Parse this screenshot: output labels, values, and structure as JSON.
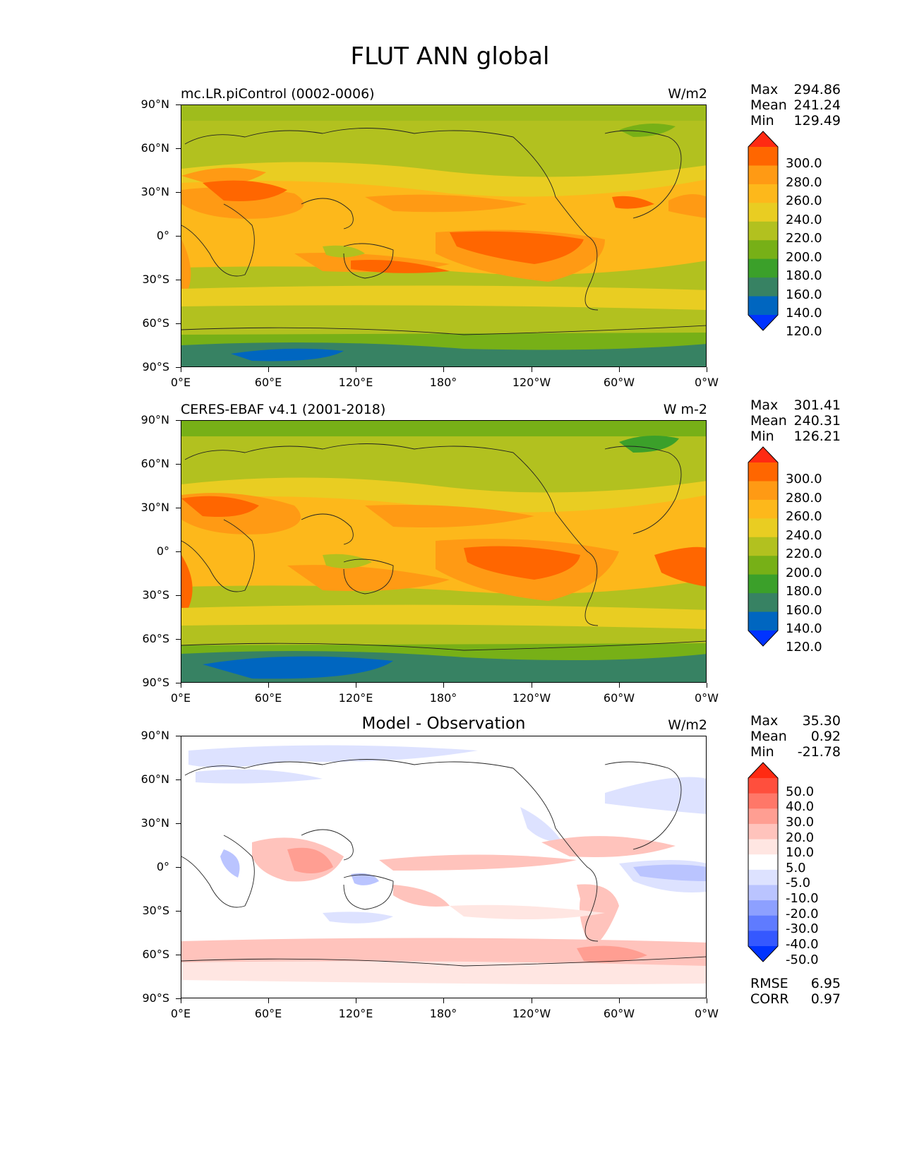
{
  "title": "FLUT ANN global",
  "axes": {
    "lat_labels": [
      "90°N",
      "60°N",
      "30°N",
      "0°",
      "30°S",
      "60°S",
      "90°S"
    ],
    "lon_labels": [
      "0°E",
      "60°E",
      "120°E",
      "180°",
      "120°W",
      "60°W",
      "0°W"
    ]
  },
  "panels": [
    {
      "name": "mc.LR.piControl (0002-0006)",
      "title": "",
      "units": "W/m2",
      "stats": {
        "max_label": "Max",
        "max": "294.86",
        "mean_label": "Mean",
        "mean": "241.24",
        "min_label": "Min",
        "min": "129.49"
      },
      "colorbar": {
        "labels": [
          "300.0",
          "280.0",
          "260.0",
          "240.0",
          "220.0",
          "200.0",
          "180.0",
          "160.0",
          "140.0",
          "120.0"
        ],
        "colors": [
          "#ff2a12",
          "#ff6600",
          "#ff9a14",
          "#fdb81b",
          "#e9cd22",
          "#b2c11f",
          "#77b017",
          "#3ba02a",
          "#378263",
          "#0066c0",
          "#0033ff"
        ]
      }
    },
    {
      "name": "CERES-EBAF v4.1 (2001-2018)",
      "title": "",
      "units": "W m-2",
      "stats": {
        "max_label": "Max",
        "max": "301.41",
        "mean_label": "Mean",
        "mean": "240.31",
        "min_label": "Min",
        "min": "126.21"
      },
      "colorbar": {
        "labels": [
          "300.0",
          "280.0",
          "260.0",
          "240.0",
          "220.0",
          "200.0",
          "180.0",
          "160.0",
          "140.0",
          "120.0"
        ],
        "colors": [
          "#ff2a12",
          "#ff6600",
          "#ff9a14",
          "#fdb81b",
          "#e9cd22",
          "#b2c11f",
          "#77b017",
          "#3ba02a",
          "#378263",
          "#0066c0",
          "#0033ff"
        ]
      }
    },
    {
      "name": "",
      "title": "Model - Observation",
      "units": "W/m2",
      "stats": {
        "max_label": "Max",
        "max": "35.30",
        "mean_label": "Mean",
        "mean": "0.92",
        "min_label": "Min",
        "min": "-21.78"
      },
      "colorbar": {
        "labels": [
          "50.0",
          "40.0",
          "30.0",
          "20.0",
          "10.0",
          "5.0",
          "-5.0",
          "-10.0",
          "-20.0",
          "-30.0",
          "-40.0",
          "-50.0"
        ],
        "colors": [
          "#ff2a12",
          "#ff4f3d",
          "#ff7768",
          "#ff9e92",
          "#ffc3bc",
          "#ffe6e2",
          "#ffffff",
          "#dde2ff",
          "#bac4ff",
          "#8da0ff",
          "#5f7bff",
          "#3558ff",
          "#0033ff"
        ]
      },
      "metrics": {
        "rmse_label": "RMSE",
        "rmse": "6.95",
        "corr_label": "CORR",
        "corr": "0.97"
      }
    }
  ]
}
